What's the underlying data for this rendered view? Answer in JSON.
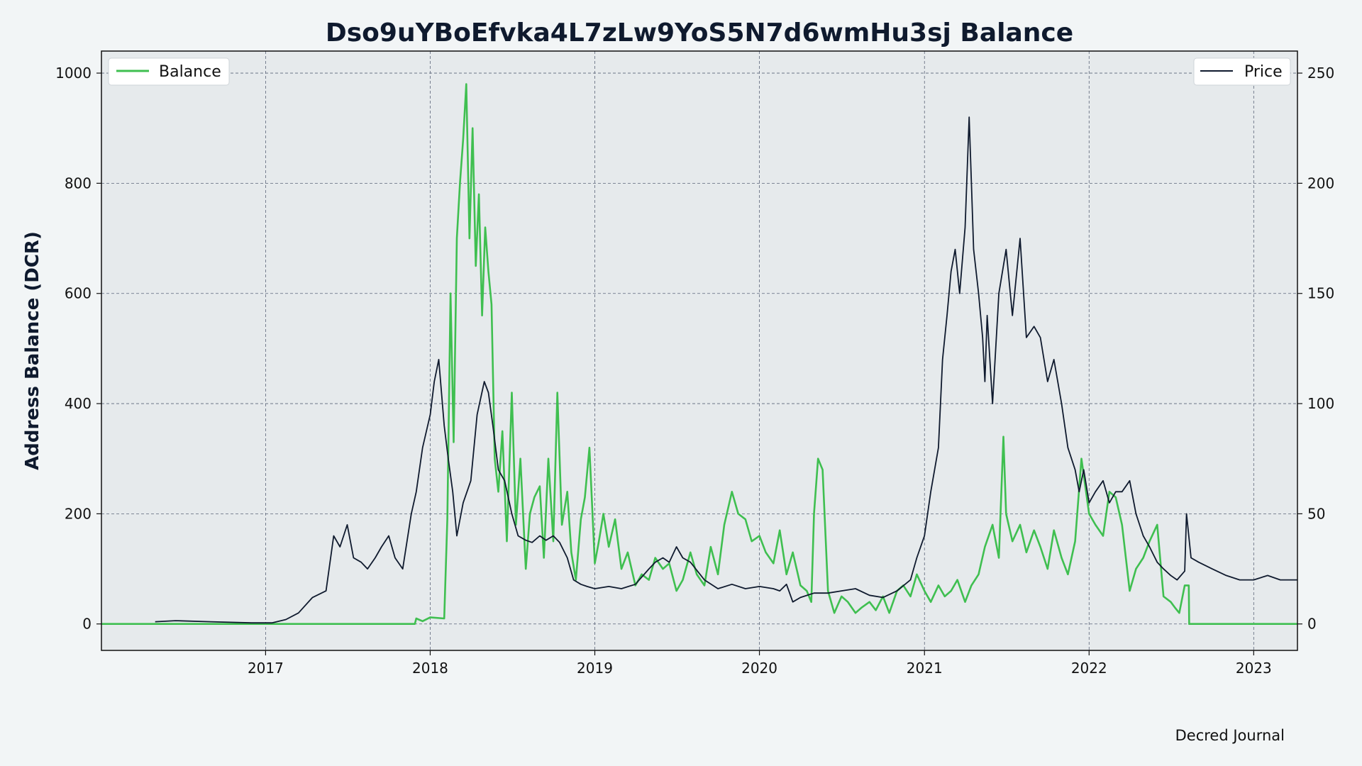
{
  "chart_data": {
    "type": "line",
    "title": "Dso9uYBoEfvka4L7zLw9YoS5N7d6wmHu3sj Balance",
    "ylabel_left": "Address Balance (DCR)",
    "ylabel_right": "",
    "xlabel": "",
    "x_ticks": [
      "2017",
      "2018",
      "2019",
      "2020",
      "2021",
      "2022",
      "2023"
    ],
    "x_range": [
      "2016-01-03",
      "2023-04-08"
    ],
    "ylim_left": [
      -48,
      1040
    ],
    "ylim_right": [
      -12,
      260
    ],
    "y_ticks_left": [
      0,
      200,
      400,
      600,
      800,
      1000
    ],
    "y_ticks_right": [
      0,
      50,
      100,
      150,
      200,
      250
    ],
    "grid": true,
    "legend_left": {
      "placement": "upper-left",
      "label": "Balance"
    },
    "legend_right": {
      "placement": "upper-right",
      "label": "Price"
    },
    "caption": "Decred Journal",
    "colors": {
      "balance": "#3fbf50",
      "price": "#0f1a2e",
      "plot_bg": "#e6eaec",
      "page_bg": "#f2f5f6"
    },
    "series": [
      {
        "name": "Balance",
        "axis": "left",
        "x": [
          "2016-01-03",
          "2017-11-28",
          "2017-12-01",
          "2017-12-15",
          "2018-01-01",
          "2018-02-01",
          "2018-02-08",
          "2018-02-15",
          "2018-02-22",
          "2018-03-01",
          "2018-03-08",
          "2018-03-15",
          "2018-03-22",
          "2018-03-29",
          "2018-04-05",
          "2018-04-12",
          "2018-04-19",
          "2018-04-26",
          "2018-05-03",
          "2018-05-10",
          "2018-05-17",
          "2018-05-24",
          "2018-06-01",
          "2018-06-10",
          "2018-06-20",
          "2018-07-01",
          "2018-07-10",
          "2018-07-20",
          "2018-08-01",
          "2018-08-10",
          "2018-08-20",
          "2018-09-01",
          "2018-09-10",
          "2018-09-20",
          "2018-10-01",
          "2018-10-10",
          "2018-10-20",
          "2018-11-01",
          "2018-11-10",
          "2018-11-20",
          "2018-12-01",
          "2018-12-10",
          "2018-12-20",
          "2019-01-01",
          "2019-01-10",
          "2019-01-20",
          "2019-02-01",
          "2019-02-15",
          "2019-03-01",
          "2019-03-15",
          "2019-04-01",
          "2019-04-15",
          "2019-05-01",
          "2019-05-15",
          "2019-06-01",
          "2019-06-15",
          "2019-07-01",
          "2019-07-15",
          "2019-08-01",
          "2019-08-15",
          "2019-09-01",
          "2019-09-15",
          "2019-10-01",
          "2019-10-15",
          "2019-11-01",
          "2019-11-15",
          "2019-12-01",
          "2019-12-15",
          "2020-01-01",
          "2020-01-15",
          "2020-02-01",
          "2020-02-15",
          "2020-03-01",
          "2020-03-15",
          "2020-04-01",
          "2020-04-15",
          "2020-04-25",
          "2020-05-01",
          "2020-05-10",
          "2020-05-20",
          "2020-06-01",
          "2020-06-15",
          "2020-07-01",
          "2020-07-15",
          "2020-08-01",
          "2020-08-15",
          "2020-09-01",
          "2020-09-15",
          "2020-10-01",
          "2020-10-15",
          "2020-11-01",
          "2020-11-15",
          "2020-12-01",
          "2020-12-15",
          "2021-01-01",
          "2021-01-15",
          "2021-02-01",
          "2021-02-15",
          "2021-03-01",
          "2021-03-15",
          "2021-04-01",
          "2021-04-15",
          "2021-05-01",
          "2021-05-15",
          "2021-06-01",
          "2021-06-15",
          "2021-06-25",
          "2021-07-01",
          "2021-07-15",
          "2021-08-01",
          "2021-08-15",
          "2021-09-01",
          "2021-09-15",
          "2021-10-01",
          "2021-10-15",
          "2021-11-01",
          "2021-11-15",
          "2021-12-01",
          "2021-12-15",
          "2022-01-01",
          "2022-01-15",
          "2022-02-01",
          "2022-02-15",
          "2022-03-01",
          "2022-03-15",
          "2022-04-01",
          "2022-04-15",
          "2022-05-01",
          "2022-05-15",
          "2022-06-01",
          "2022-06-15",
          "2022-07-01",
          "2022-07-10",
          "2022-07-20",
          "2022-08-01",
          "2022-08-10",
          "2022-08-11",
          "2023-04-08"
        ],
        "values": [
          0,
          0,
          10,
          5,
          12,
          10,
          190,
          600,
          330,
          700,
          800,
          880,
          980,
          700,
          900,
          650,
          780,
          560,
          720,
          640,
          580,
          300,
          240,
          350,
          150,
          420,
          180,
          300,
          100,
          200,
          230,
          250,
          120,
          300,
          150,
          420,
          180,
          240,
          130,
          80,
          190,
          230,
          320,
          110,
          150,
          200,
          140,
          190,
          100,
          130,
          70,
          90,
          80,
          120,
          100,
          110,
          60,
          80,
          130,
          90,
          70,
          140,
          90,
          180,
          240,
          200,
          190,
          150,
          160,
          130,
          110,
          170,
          90,
          130,
          70,
          60,
          40,
          200,
          300,
          280,
          60,
          20,
          50,
          40,
          20,
          30,
          40,
          25,
          50,
          20,
          60,
          70,
          50,
          90,
          60,
          40,
          70,
          50,
          60,
          80,
          40,
          70,
          90,
          140,
          180,
          120,
          340,
          200,
          150,
          180,
          130,
          170,
          140,
          100,
          170,
          120,
          90,
          150,
          300,
          200,
          180,
          160,
          240,
          230,
          180,
          60,
          100,
          120,
          150,
          180,
          50,
          40,
          30,
          20,
          70,
          70,
          0,
          0
        ]
      },
      {
        "name": "Price",
        "axis": "right",
        "x": [
          "2016-05-01",
          "2016-06-15",
          "2016-09-01",
          "2016-12-01",
          "2017-01-15",
          "2017-02-15",
          "2017-03-15",
          "2017-04-15",
          "2017-05-15",
          "2017-06-01",
          "2017-06-15",
          "2017-07-01",
          "2017-07-15",
          "2017-08-01",
          "2017-08-15",
          "2017-09-01",
          "2017-09-15",
          "2017-10-01",
          "2017-10-15",
          "2017-11-01",
          "2017-11-20",
          "2017-12-01",
          "2017-12-15",
          "2018-01-01",
          "2018-01-10",
          "2018-01-20",
          "2018-02-01",
          "2018-02-10",
          "2018-02-20",
          "2018-03-01",
          "2018-03-15",
          "2018-04-01",
          "2018-04-15",
          "2018-05-01",
          "2018-05-10",
          "2018-05-20",
          "2018-06-01",
          "2018-06-15",
          "2018-07-01",
          "2018-07-15",
          "2018-08-01",
          "2018-08-15",
          "2018-09-01",
          "2018-09-15",
          "2018-10-01",
          "2018-10-15",
          "2018-11-01",
          "2018-11-15",
          "2018-12-01",
          "2018-12-15",
          "2019-01-01",
          "2019-02-01",
          "2019-03-01",
          "2019-04-01",
          "2019-05-01",
          "2019-05-15",
          "2019-06-01",
          "2019-06-15",
          "2019-07-01",
          "2019-07-15",
          "2019-08-01",
          "2019-09-01",
          "2019-10-01",
          "2019-11-01",
          "2019-12-01",
          "2020-01-01",
          "2020-02-01",
          "2020-02-15",
          "2020-03-01",
          "2020-03-15",
          "2020-04-01",
          "2020-05-01",
          "2020-06-01",
          "2020-07-01",
          "2020-08-01",
          "2020-09-01",
          "2020-10-01",
          "2020-11-01",
          "2020-12-01",
          "2020-12-15",
          "2021-01-01",
          "2021-01-15",
          "2021-02-01",
          "2021-02-10",
          "2021-02-20",
          "2021-03-01",
          "2021-03-10",
          "2021-03-20",
          "2021-04-01",
          "2021-04-10",
          "2021-04-15",
          "2021-04-20",
          "2021-05-01",
          "2021-05-10",
          "2021-05-15",
          "2021-05-20",
          "2021-06-01",
          "2021-06-15",
          "2021-07-01",
          "2021-07-15",
          "2021-08-01",
          "2021-08-15",
          "2021-09-01",
          "2021-09-15",
          "2021-10-01",
          "2021-10-15",
          "2021-11-01",
          "2021-11-15",
          "2021-12-01",
          "2021-12-10",
          "2021-12-20",
          "2022-01-01",
          "2022-01-15",
          "2022-02-01",
          "2022-02-15",
          "2022-03-01",
          "2022-03-15",
          "2022-04-01",
          "2022-04-15",
          "2022-05-01",
          "2022-05-15",
          "2022-06-01",
          "2022-06-15",
          "2022-07-01",
          "2022-07-15",
          "2022-08-01",
          "2022-08-05",
          "2022-08-15",
          "2022-09-01",
          "2022-10-01",
          "2022-11-01",
          "2022-12-01",
          "2023-01-01",
          "2023-02-01",
          "2023-03-01",
          "2023-04-08"
        ],
        "values": [
          1,
          1.5,
          1,
          0.5,
          0.5,
          2,
          5,
          12,
          15,
          40,
          35,
          45,
          30,
          28,
          25,
          30,
          35,
          40,
          30,
          25,
          50,
          60,
          80,
          95,
          110,
          120,
          90,
          75,
          60,
          40,
          55,
          65,
          95,
          110,
          105,
          90,
          70,
          65,
          50,
          40,
          38,
          37,
          40,
          38,
          40,
          37,
          30,
          20,
          18,
          17,
          16,
          17,
          16,
          18,
          25,
          28,
          30,
          28,
          35,
          30,
          28,
          20,
          16,
          18,
          16,
          17,
          16,
          15,
          18,
          10,
          12,
          14,
          14,
          15,
          16,
          13,
          12,
          15,
          20,
          30,
          40,
          60,
          80,
          120,
          140,
          160,
          170,
          150,
          180,
          230,
          200,
          170,
          150,
          130,
          110,
          140,
          100,
          150,
          170,
          140,
          175,
          130,
          135,
          130,
          110,
          120,
          100,
          80,
          70,
          60,
          70,
          55,
          60,
          65,
          55,
          60,
          60,
          65,
          50,
          40,
          35,
          28,
          25,
          22,
          20,
          24,
          50,
          30,
          28,
          25,
          22,
          20,
          20,
          22,
          20,
          20
        ]
      }
    ]
  }
}
